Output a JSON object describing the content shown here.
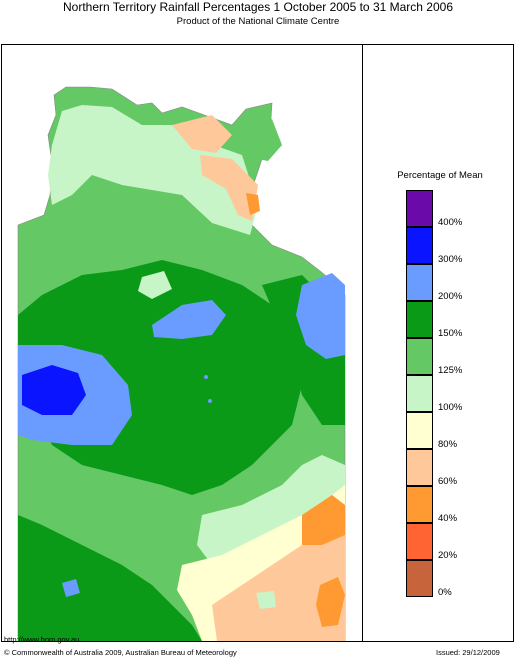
{
  "header": {
    "title": "Northern Territory Rainfall Percentages 1 October 2005 to 31 March 2006",
    "subtitle": "Product of the National Climate Centre"
  },
  "legend": {
    "title": "Percentage of Mean",
    "bins": [
      {
        "label": "400%",
        "color": "#6a0aa8"
      },
      {
        "label": "300%",
        "color": "#0a14ff"
      },
      {
        "label": "200%",
        "color": "#6a9cff"
      },
      {
        "label": "150%",
        "color": "#0a9a18"
      },
      {
        "label": "125%",
        "color": "#64c864"
      },
      {
        "label": "100%",
        "color": "#c8f5c8"
      },
      {
        "label": "80%",
        "color": "#ffffd2"
      },
      {
        "label": "60%",
        "color": "#ffc89a"
      },
      {
        "label": "40%",
        "color": "#ff9a32"
      },
      {
        "label": "20%",
        "color": "#ff6432"
      },
      {
        "label": "0%",
        "color": "#c8643c"
      }
    ]
  },
  "footer": {
    "url": "http://www.bom.gov.au",
    "copyright": "© Commonwealth of Australia 2009, Australian Bureau of Meteorology",
    "issued": "Issued: 29/12/2009"
  }
}
